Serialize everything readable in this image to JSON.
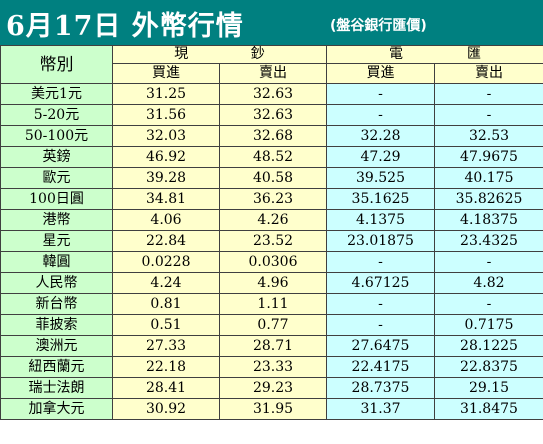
{
  "header": {
    "title": "6月17日 外幣行情",
    "subtitle": "(盤谷銀行匯價)"
  },
  "columns": {
    "currency": "幣別",
    "cash_group": [
      "現",
      "鈔"
    ],
    "tt_group": [
      "電",
      "匯"
    ],
    "buy": "買進",
    "sell": "賣出"
  },
  "rows": [
    {
      "name": "美元1元",
      "cash_buy": "31.25",
      "cash_sell": "32.63",
      "tt_buy": "-",
      "tt_sell": "-"
    },
    {
      "name": "5-20元",
      "cash_buy": "31.56",
      "cash_sell": "32.63",
      "tt_buy": "-",
      "tt_sell": "-"
    },
    {
      "name": "50-100元",
      "cash_buy": "32.03",
      "cash_sell": "32.68",
      "tt_buy": "32.28",
      "tt_sell": "32.53"
    },
    {
      "name": "英鎊",
      "cash_buy": "46.92",
      "cash_sell": "48.52",
      "tt_buy": "47.29",
      "tt_sell": "47.9675"
    },
    {
      "name": "歐元",
      "cash_buy": "39.28",
      "cash_sell": "40.58",
      "tt_buy": "39.525",
      "tt_sell": "40.175"
    },
    {
      "name": "100日圓",
      "cash_buy": "34.81",
      "cash_sell": "36.23",
      "tt_buy": "35.1625",
      "tt_sell": "35.82625"
    },
    {
      "name": "港幣",
      "cash_buy": "4.06",
      "cash_sell": "4.26",
      "tt_buy": "4.1375",
      "tt_sell": "4.18375"
    },
    {
      "name": "星元",
      "cash_buy": "22.84",
      "cash_sell": "23.52",
      "tt_buy": "23.01875",
      "tt_sell": "23.4325"
    },
    {
      "name": "韓圓",
      "cash_buy": "0.0228",
      "cash_sell": "0.0306",
      "tt_buy": "-",
      "tt_sell": "-"
    },
    {
      "name": "人民幣",
      "cash_buy": "4.24",
      "cash_sell": "4.96",
      "tt_buy": "4.67125",
      "tt_sell": "4.82"
    },
    {
      "name": "新台幣",
      "cash_buy": "0.81",
      "cash_sell": "1.11",
      "tt_buy": "-",
      "tt_sell": "-"
    },
    {
      "name": "菲披索",
      "cash_buy": "0.51",
      "cash_sell": "0.77",
      "tt_buy": "-",
      "tt_sell": "0.7175"
    },
    {
      "name": "澳洲元",
      "cash_buy": "27.33",
      "cash_sell": "28.71",
      "tt_buy": "27.6475",
      "tt_sell": "28.1225"
    },
    {
      "name": "紐西蘭元",
      "cash_buy": "22.18",
      "cash_sell": "23.33",
      "tt_buy": "22.4175",
      "tt_sell": "22.8375"
    },
    {
      "name": "瑞士法朗",
      "cash_buy": "28.41",
      "cash_sell": "29.23",
      "tt_buy": "28.7375",
      "tt_sell": "29.15"
    },
    {
      "name": "加拿大元",
      "cash_buy": "30.92",
      "cash_sell": "31.95",
      "tt_buy": "31.37",
      "tt_sell": "31.8475"
    }
  ],
  "colors": {
    "banner": "#008080",
    "label_bg": "#ccffcc",
    "cash_bg": "#ffffcc",
    "tt_bg": "#ccffff"
  }
}
